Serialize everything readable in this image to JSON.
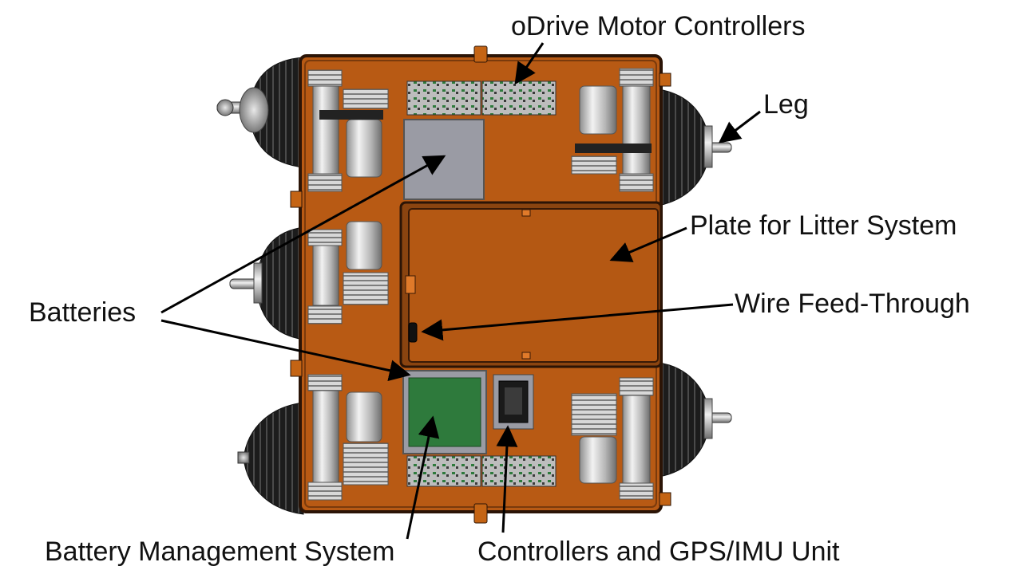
{
  "labels": {
    "odrive": "oDrive Motor Controllers",
    "leg": "Leg",
    "plate": "Plate for Litter System",
    "batteries": "Batteries",
    "wire": "Wire Feed-Through",
    "bms": "Battery Management System",
    "controllers": "Controllers and GPS/IMU Unit"
  },
  "colors": {
    "chassis": "#b85a14",
    "chassis_edge": "#2b1406",
    "plate_inner": "#b45813",
    "battery_gray": "#9a9ba4",
    "bms_green": "#2e7a3c",
    "motor_silver": "#c9c9c9",
    "bellows": "#1a1a1a",
    "arrow": "#000000"
  }
}
